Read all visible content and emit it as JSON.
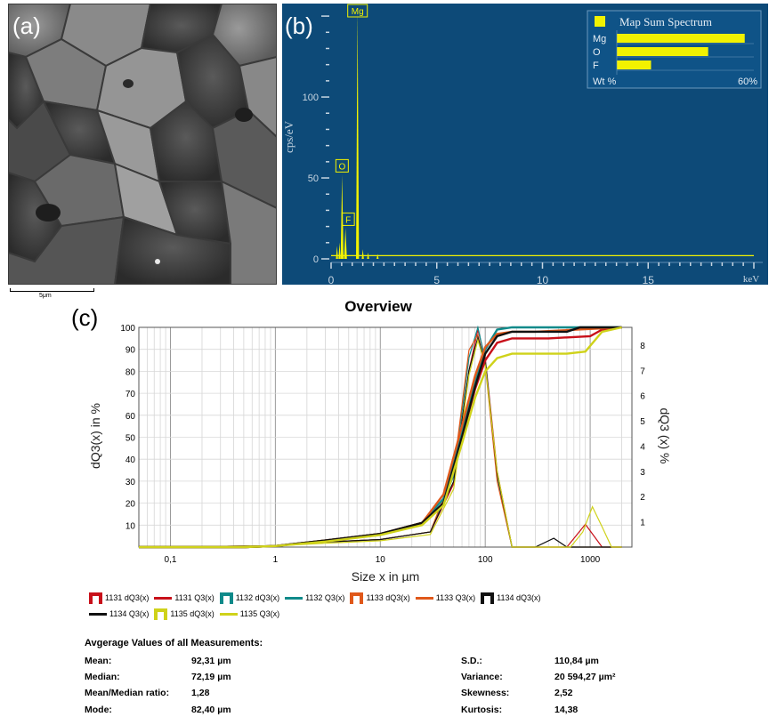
{
  "panel_labels": {
    "a": "(a)",
    "b": "(b)",
    "c": "(c)"
  },
  "sem": {
    "scale_bar_label": "5μm"
  },
  "colors": {
    "eds_background": "#0d4a78",
    "eds_peak": "#f2f200",
    "series_1131": "#c8101a",
    "series_1132": "#0f8a8a",
    "series_1133": "#e0581a",
    "series_1134": "#111111",
    "series_1135": "#cfd21a"
  },
  "chart_data": [
    {
      "type": "line",
      "chart": "eds_spectrum",
      "ylabel": "cps/eV",
      "xlabel": "keV",
      "xlim": [
        0,
        20
      ],
      "ylim": [
        0,
        155
      ],
      "x_ticks": [
        "0",
        "5",
        "10",
        "15"
      ],
      "y_ticks": [
        "0",
        "50",
        "100"
      ],
      "peaks": [
        {
          "label": "Mg",
          "x": 1.25,
          "y": 154
        },
        {
          "label": "O",
          "x": 0.52,
          "y": 52
        },
        {
          "label": "F",
          "x": 0.68,
          "y": 19
        }
      ],
      "inset": {
        "title": "Map Sum Spectrum",
        "type": "bar",
        "categories": [
          "Mg",
          "O",
          "F"
        ],
        "values": [
          56,
          40,
          15
        ],
        "axis_label": "Wt %",
        "axis_max_label": "60%",
        "xlim": [
          0,
          60
        ]
      }
    },
    {
      "type": "line",
      "chart": "particle_size_distribution",
      "title": "Overview",
      "xlabel": "Size x in µm",
      "ylabel": "dQ3(x) in %",
      "y2label": "dQ3 (x) %",
      "x_scale": "log",
      "xlim": [
        0.05,
        2500
      ],
      "ylim": [
        0,
        100
      ],
      "y2lim": [
        0,
        8.7
      ],
      "x_ticks": [
        "0,1",
        "1",
        "10",
        "100",
        "1000"
      ],
      "y_ticks": [
        "10",
        "20",
        "30",
        "40",
        "50",
        "60",
        "70",
        "80",
        "90",
        "100"
      ],
      "y2_ticks": [
        "1",
        "2",
        "3",
        "4",
        "5",
        "6",
        "7",
        "8"
      ],
      "grid": true,
      "legend": [
        {
          "label": "1131 dQ3(x)",
          "kind": "box",
          "color": "#c8101a"
        },
        {
          "label": "1131 Q3(x)",
          "kind": "line",
          "color": "#c8101a"
        },
        {
          "label": "1132 dQ3(x)",
          "kind": "box",
          "color": "#0f8a8a"
        },
        {
          "label": "1132 Q3(x)",
          "kind": "line",
          "color": "#0f8a8a"
        },
        {
          "label": "1133 dQ3(x)",
          "kind": "box",
          "color": "#e0581a"
        },
        {
          "label": "1133 Q3(x)",
          "kind": "line",
          "color": "#e0581a"
        },
        {
          "label": "1134 dQ3(x)",
          "kind": "box",
          "color": "#111111"
        },
        {
          "label": "1134 Q3(x)",
          "kind": "line",
          "color": "#111111"
        },
        {
          "label": "1135 dQ3(x)",
          "kind": "box",
          "color": "#cfd21a"
        },
        {
          "label": "1135 Q3(x)",
          "kind": "line",
          "color": "#cfd21a"
        }
      ],
      "series_q3": [
        {
          "name": "1131 Q3(x)",
          "color": "#c8101a",
          "x": [
            0.05,
            0.5,
            1,
            3,
            10,
            25,
            40,
            60,
            80,
            100,
            130,
            180,
            400,
            1000,
            1300,
            2000
          ],
          "y": [
            0,
            0,
            0.5,
            3,
            6,
            11,
            20,
            50,
            72,
            85,
            93,
            95,
            95,
            96,
            99,
            100
          ]
        },
        {
          "name": "1132 Q3(x)",
          "color": "#0f8a8a",
          "x": [
            0.05,
            0.5,
            1,
            3,
            10,
            25,
            40,
            60,
            80,
            100,
            130,
            180,
            2000
          ],
          "y": [
            0,
            0,
            0.5,
            3,
            6,
            11,
            22,
            52,
            75,
            90,
            99,
            100,
            100
          ]
        },
        {
          "name": "1133 Q3(x)",
          "color": "#e0581a",
          "x": [
            0.05,
            0.5,
            1,
            3,
            10,
            25,
            40,
            60,
            80,
            100,
            130,
            180,
            300,
            2000
          ],
          "y": [
            0,
            0,
            0.5,
            3,
            6,
            11,
            24,
            55,
            78,
            91,
            97,
            98,
            98,
            100
          ]
        },
        {
          "name": "1134 Q3(x)",
          "color": "#111111",
          "x": [
            0.05,
            0.5,
            1,
            3,
            10,
            25,
            40,
            60,
            80,
            100,
            130,
            180,
            300,
            600,
            800,
            2000
          ],
          "y": [
            0,
            0,
            0.5,
            3,
            6,
            11,
            20,
            50,
            73,
            88,
            96,
            98,
            98,
            98,
            100,
            100
          ]
        },
        {
          "name": "1135 Q3(x)",
          "color": "#cfd21a",
          "x": [
            0.05,
            0.5,
            1,
            3,
            10,
            25,
            40,
            60,
            80,
            100,
            130,
            180,
            600,
            900,
            1300,
            2000
          ],
          "y": [
            0,
            0,
            0.5,
            2.5,
            5.5,
            10,
            19,
            47,
            68,
            80,
            86,
            88,
            88,
            89,
            98,
            100
          ]
        }
      ],
      "series_dq3": [
        {
          "name": "1131 dQ3(x)",
          "color": "#c8101a",
          "x": [
            0.05,
            1,
            3,
            10,
            30,
            50,
            70,
            85,
            100,
            130,
            180,
            600,
            900,
            1300,
            2000
          ],
          "y": [
            0,
            0.05,
            0.2,
            0.3,
            0.6,
            2.5,
            7,
            8.6,
            7.5,
            3,
            0,
            0,
            0.9,
            0,
            0
          ]
        },
        {
          "name": "1132 dQ3(x)",
          "color": "#0f8a8a",
          "x": [
            0.05,
            1,
            3,
            10,
            30,
            50,
            70,
            85,
            100,
            130,
            180,
            2000
          ],
          "y": [
            0,
            0.05,
            0.2,
            0.3,
            0.6,
            2.8,
            7.5,
            8.7,
            7.4,
            2.8,
            0,
            0
          ]
        },
        {
          "name": "1133 dQ3(x)",
          "color": "#e0581a",
          "x": [
            0.05,
            1,
            3,
            10,
            30,
            50,
            70,
            85,
            100,
            130,
            180,
            2000
          ],
          "y": [
            0,
            0.05,
            0.2,
            0.3,
            0.6,
            3,
            7.8,
            8.4,
            7.2,
            2.6,
            0,
            0
          ]
        },
        {
          "name": "1134 dQ3(x)",
          "color": "#111111",
          "x": [
            0.05,
            1,
            3,
            10,
            30,
            50,
            70,
            85,
            100,
            130,
            180,
            300,
            450,
            600,
            2000
          ],
          "y": [
            0,
            0.05,
            0.2,
            0.3,
            0.6,
            2.6,
            7,
            8.3,
            7.3,
            2.9,
            0,
            0,
            0.35,
            0,
            0
          ]
        },
        {
          "name": "1135 dQ3(x)",
          "color": "#cfd21a",
          "x": [
            0.05,
            1,
            3,
            10,
            30,
            50,
            70,
            85,
            100,
            130,
            180,
            650,
            850,
            1050,
            1300,
            1600,
            2000
          ],
          "y": [
            0,
            0.05,
            0.15,
            0.25,
            0.5,
            2.3,
            6.8,
            8.2,
            7.2,
            3,
            0,
            0,
            0.6,
            1.6,
            0.8,
            0,
            0
          ]
        }
      ]
    }
  ],
  "stats": {
    "title": "Avgerage Values of all Measurements:",
    "left": [
      {
        "label": "Mean:",
        "value": "92,31 µm"
      },
      {
        "label": "Median:",
        "value": "72,19 µm"
      },
      {
        "label": "Mean/Median ratio:",
        "value": "1,28"
      },
      {
        "label": "Mode:",
        "value": "82,40 µm"
      }
    ],
    "right": [
      {
        "label": "S.D.:",
        "value": "110,84 µm"
      },
      {
        "label": "Variance:",
        "value": "20 594,27 µm²"
      },
      {
        "label": "Skewness:",
        "value": "2,52"
      },
      {
        "label": "Kurtosis:",
        "value": "14,38"
      }
    ]
  }
}
